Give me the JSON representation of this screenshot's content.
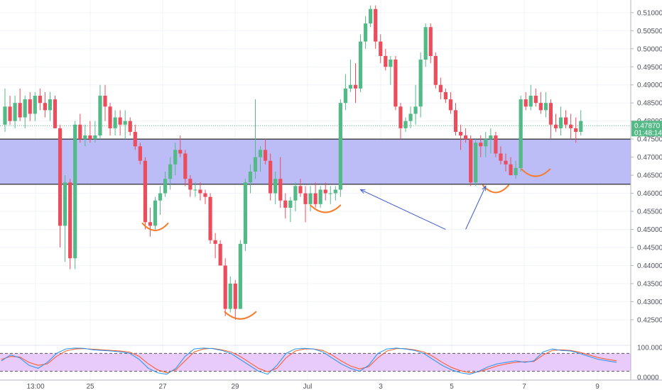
{
  "chart_data": {
    "type": "candlestick",
    "price_axis": {
      "ylim": [
        0.4185,
        0.5135
      ],
      "ticks": [
        "0.51000",
        "0.50500",
        "0.50000",
        "0.49500",
        "0.49000",
        "0.48500",
        "0.48000",
        "0.47500",
        "0.47000",
        "0.46500",
        "0.46000",
        "0.45500",
        "0.45000",
        "0.44500",
        "0.44000",
        "0.43500",
        "0.43000",
        "0.42500"
      ],
      "tick_values": [
        0.51,
        0.505,
        0.5,
        0.495,
        0.49,
        0.485,
        0.48,
        0.475,
        0.47,
        0.465,
        0.46,
        0.455,
        0.45,
        0.445,
        0.44,
        0.435,
        0.43,
        0.425
      ]
    },
    "time_axis": {
      "labels": [
        "13:00",
        "25",
        "27",
        "29",
        "Jul",
        "3",
        "5",
        "7",
        "9"
      ]
    },
    "last_price": "0.47870",
    "countdown": "01:48:14",
    "zone": {
      "low": 0.4625,
      "high": 0.475,
      "color": "#b8b8f5"
    },
    "candles": [
      [
        0.479,
        0.489,
        0.477,
        0.484
      ],
      [
        0.484,
        0.487,
        0.479,
        0.48
      ],
      [
        0.48,
        0.487,
        0.478,
        0.485
      ],
      [
        0.485,
        0.489,
        0.48,
        0.481
      ],
      [
        0.481,
        0.487,
        0.478,
        0.486
      ],
      [
        0.486,
        0.488,
        0.48,
        0.482
      ],
      [
        0.482,
        0.488,
        0.48,
        0.487
      ],
      [
        0.487,
        0.489,
        0.483,
        0.485
      ],
      [
        0.485,
        0.488,
        0.481,
        0.483
      ],
      [
        0.483,
        0.488,
        0.48,
        0.486
      ],
      [
        0.486,
        0.487,
        0.478,
        0.478
      ],
      [
        0.478,
        0.479,
        0.445,
        0.451
      ],
      [
        0.451,
        0.465,
        0.441,
        0.463
      ],
      [
        0.463,
        0.464,
        0.439,
        0.442
      ],
      [
        0.442,
        0.48,
        0.439,
        0.479
      ],
      [
        0.479,
        0.482,
        0.474,
        0.475
      ],
      [
        0.475,
        0.479,
        0.473,
        0.476
      ],
      [
        0.476,
        0.48,
        0.474,
        0.475
      ],
      [
        0.475,
        0.48,
        0.474,
        0.476
      ],
      [
        0.476,
        0.49,
        0.475,
        0.487
      ],
      [
        0.487,
        0.49,
        0.48,
        0.484
      ],
      [
        0.484,
        0.485,
        0.476,
        0.478
      ],
      [
        0.478,
        0.483,
        0.476,
        0.481
      ],
      [
        0.481,
        0.483,
        0.476,
        0.479
      ],
      [
        0.479,
        0.483,
        0.475,
        0.48
      ],
      [
        0.48,
        0.481,
        0.476,
        0.477
      ],
      [
        0.477,
        0.479,
        0.472,
        0.473
      ],
      [
        0.473,
        0.474,
        0.468,
        0.469
      ],
      [
        0.469,
        0.47,
        0.45,
        0.452
      ],
      [
        0.452,
        0.456,
        0.448,
        0.451
      ],
      [
        0.451,
        0.459,
        0.45,
        0.458
      ],
      [
        0.458,
        0.462,
        0.454,
        0.46
      ],
      [
        0.46,
        0.466,
        0.459,
        0.464
      ],
      [
        0.464,
        0.47,
        0.461,
        0.468
      ],
      [
        0.468,
        0.474,
        0.465,
        0.472
      ],
      [
        0.472,
        0.476,
        0.47,
        0.471
      ],
      [
        0.471,
        0.472,
        0.462,
        0.464
      ],
      [
        0.464,
        0.465,
        0.459,
        0.461
      ],
      [
        0.461,
        0.463,
        0.459,
        0.461
      ],
      [
        0.461,
        0.463,
        0.458,
        0.46
      ],
      [
        0.46,
        0.461,
        0.457,
        0.459
      ],
      [
        0.459,
        0.46,
        0.446,
        0.447
      ],
      [
        0.447,
        0.449,
        0.442,
        0.446
      ],
      [
        0.446,
        0.447,
        0.44,
        0.44
      ],
      [
        0.44,
        0.442,
        0.426,
        0.428
      ],
      [
        0.428,
        0.437,
        0.427,
        0.435
      ],
      [
        0.435,
        0.436,
        0.425,
        0.428
      ],
      [
        0.428,
        0.447,
        0.428,
        0.446
      ],
      [
        0.446,
        0.464,
        0.444,
        0.463
      ],
      [
        0.463,
        0.468,
        0.46,
        0.466
      ],
      [
        0.466,
        0.486,
        0.464,
        0.47
      ],
      [
        0.47,
        0.473,
        0.466,
        0.472
      ],
      [
        0.472,
        0.475,
        0.468,
        0.469
      ],
      [
        0.469,
        0.471,
        0.458,
        0.46
      ],
      [
        0.46,
        0.466,
        0.457,
        0.464
      ],
      [
        0.464,
        0.47,
        0.456,
        0.458
      ],
      [
        0.458,
        0.46,
        0.453,
        0.456
      ],
      [
        0.456,
        0.459,
        0.452,
        0.458
      ],
      [
        0.458,
        0.463,
        0.455,
        0.462
      ],
      [
        0.462,
        0.464,
        0.459,
        0.46
      ],
      [
        0.46,
        0.462,
        0.452,
        0.457
      ],
      [
        0.457,
        0.462,
        0.455,
        0.46
      ],
      [
        0.46,
        0.463,
        0.456,
        0.457
      ],
      [
        0.457,
        0.462,
        0.456,
        0.461
      ],
      [
        0.461,
        0.463,
        0.458,
        0.46
      ],
      [
        0.46,
        0.462,
        0.457,
        0.46
      ],
      [
        0.46,
        0.462,
        0.458,
        0.461
      ],
      [
        0.461,
        0.486,
        0.459,
        0.485
      ],
      [
        0.485,
        0.493,
        0.483,
        0.489
      ],
      [
        0.489,
        0.497,
        0.488,
        0.49
      ],
      [
        0.49,
        0.496,
        0.485,
        0.489
      ],
      [
        0.489,
        0.504,
        0.488,
        0.502
      ],
      [
        0.502,
        0.509,
        0.5,
        0.507
      ],
      [
        0.507,
        0.512,
        0.506,
        0.511
      ],
      [
        0.511,
        0.512,
        0.5,
        0.502
      ],
      [
        0.502,
        0.504,
        0.496,
        0.498
      ],
      [
        0.498,
        0.5,
        0.494,
        0.495
      ],
      [
        0.495,
        0.498,
        0.49,
        0.497
      ],
      [
        0.497,
        0.498,
        0.483,
        0.484
      ],
      [
        0.484,
        0.485,
        0.475,
        0.478
      ],
      [
        0.478,
        0.481,
        0.477,
        0.48
      ],
      [
        0.48,
        0.484,
        0.478,
        0.482
      ],
      [
        0.482,
        0.49,
        0.479,
        0.484
      ],
      [
        0.484,
        0.499,
        0.481,
        0.497
      ],
      [
        0.497,
        0.507,
        0.495,
        0.506
      ],
      [
        0.506,
        0.507,
        0.496,
        0.498
      ],
      [
        0.498,
        0.499,
        0.489,
        0.49
      ],
      [
        0.49,
        0.492,
        0.486,
        0.488
      ],
      [
        0.488,
        0.489,
        0.485,
        0.486
      ],
      [
        0.486,
        0.488,
        0.482,
        0.483
      ],
      [
        0.483,
        0.485,
        0.476,
        0.477
      ],
      [
        0.477,
        0.479,
        0.472,
        0.476
      ],
      [
        0.476,
        0.478,
        0.474,
        0.475
      ],
      [
        0.475,
        0.476,
        0.462,
        0.463
      ],
      [
        0.463,
        0.475,
        0.462,
        0.474
      ],
      [
        0.474,
        0.476,
        0.47,
        0.473
      ],
      [
        0.473,
        0.477,
        0.47,
        0.475
      ],
      [
        0.475,
        0.478,
        0.471,
        0.476
      ],
      [
        0.476,
        0.477,
        0.47,
        0.471
      ],
      [
        0.471,
        0.473,
        0.468,
        0.469
      ],
      [
        0.469,
        0.471,
        0.466,
        0.468
      ],
      [
        0.468,
        0.47,
        0.465,
        0.465
      ],
      [
        0.465,
        0.469,
        0.464,
        0.467
      ],
      [
        0.467,
        0.487,
        0.466,
        0.486
      ],
      [
        0.486,
        0.488,
        0.483,
        0.484
      ],
      [
        0.484,
        0.49,
        0.483,
        0.487
      ],
      [
        0.487,
        0.489,
        0.484,
        0.485
      ],
      [
        0.485,
        0.488,
        0.482,
        0.483
      ],
      [
        0.483,
        0.488,
        0.481,
        0.485
      ],
      [
        0.485,
        0.486,
        0.475,
        0.479
      ],
      [
        0.479,
        0.482,
        0.477,
        0.478
      ],
      [
        0.478,
        0.484,
        0.476,
        0.481
      ],
      [
        0.481,
        0.483,
        0.478,
        0.479
      ],
      [
        0.479,
        0.482,
        0.475,
        0.478
      ],
      [
        0.478,
        0.481,
        0.474,
        0.477
      ],
      [
        0.477,
        0.483,
        0.476,
        0.48
      ]
    ],
    "annotations": [
      "orange curve under 0.450 near Jun 26",
      "orange curve under 0.427 near Jun 29",
      "orange curve under 0.455 near Jul 1",
      "orange curve under 0.462 near Jul 5",
      "orange curve under 0.466 near Jul 7",
      "blue arrow pointing to 0.461 near Jul 2",
      "blue arrow pointing to 0.462 near Jul 5"
    ],
    "oscillator": {
      "ticks": [
        "100.0000",
        "0.0000"
      ],
      "band": [
        20,
        80
      ],
      "k": [
        55,
        75,
        65,
        40,
        30,
        50,
        80,
        95,
        98,
        97,
        92,
        90,
        88,
        85,
        80,
        60,
        30,
        15,
        10,
        30,
        70,
        95,
        98,
        96,
        90,
        80,
        60,
        40,
        20,
        10,
        40,
        80,
        95,
        97,
        95,
        85,
        65,
        45,
        30,
        20,
        40,
        80,
        95,
        98,
        95,
        90,
        80,
        60,
        40,
        25,
        15,
        10,
        20,
        35,
        45,
        50,
        55,
        50,
        55,
        85,
        95,
        90,
        88,
        80,
        70,
        60,
        55,
        50
      ],
      "d": [
        60,
        70,
        68,
        50,
        40,
        45,
        70,
        88,
        95,
        96,
        94,
        92,
        90,
        88,
        84,
        70,
        45,
        25,
        15,
        25,
        55,
        85,
        95,
        97,
        92,
        85,
        70,
        50,
        30,
        18,
        30,
        65,
        88,
        95,
        95,
        90,
        75,
        55,
        38,
        28,
        35,
        65,
        88,
        96,
        96,
        92,
        85,
        70,
        50,
        33,
        22,
        15,
        18,
        28,
        38,
        45,
        50,
        52,
        53,
        75,
        90,
        92,
        90,
        84,
        75,
        66,
        60,
        55
      ]
    },
    "colors": {
      "up": "#53b987",
      "down": "#eb4d5c",
      "zone_fill": "#b8b8f5",
      "annotation_curve": "#f57c2a",
      "annotation_arrow": "#3b5bd6",
      "price_tag": "#53b987",
      "osc_k": "#2196f3",
      "osc_d": "#ff5722",
      "osc_band": "#e6c4fb"
    }
  }
}
